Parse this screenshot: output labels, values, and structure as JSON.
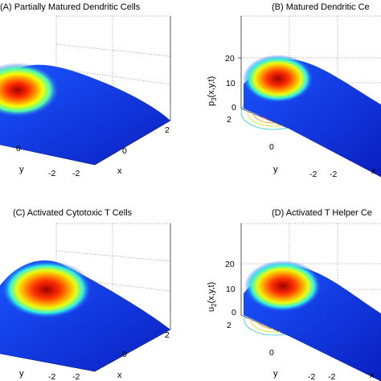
{
  "chart_data": [
    {
      "type": "surface",
      "title": "(A)  Partially Matured Dendritic Cells",
      "xlabel": "x",
      "ylabel": "y",
      "zlabel": "",
      "x_ticks": [
        "-2",
        "0",
        "2"
      ],
      "y_ticks": [
        "-2",
        "0"
      ],
      "z_ticks": [],
      "colormap": "jet",
      "contours": "projected on floor",
      "grid": true
    },
    {
      "type": "surface",
      "title": "(B)  Matured Dendritic Ce",
      "xlabel": "x",
      "ylabel": "y",
      "zlabel": "p3(x,y,t)",
      "zlabel_main": "p",
      "zlabel_sub": "3",
      "zlabel_rest": "(x,y,t)",
      "x_ticks": [
        "-2"
      ],
      "y_ticks": [
        "-2",
        "0",
        "2"
      ],
      "z_ticks": [
        "0",
        "10",
        "20"
      ],
      "zlim": [
        0,
        20
      ],
      "colormap": "jet",
      "contours": "projected on floor",
      "grid": true
    },
    {
      "type": "surface",
      "title": "(C)  Activated Cytotoxic T Cells",
      "xlabel": "x",
      "ylabel": "y",
      "zlabel": "",
      "x_ticks": [
        "-2",
        "0",
        "2"
      ],
      "y_ticks": [
        "-2"
      ],
      "z_ticks": [],
      "colormap": "jet",
      "contours": "projected on floor",
      "grid": true
    },
    {
      "type": "surface",
      "title": "(D)  Activated T Helper Ce",
      "xlabel": "x",
      "ylabel": "y",
      "zlabel": "u2(x,y,t)",
      "zlabel_main": "u",
      "zlabel_sub": "2",
      "zlabel_rest": "(x,y,t)",
      "x_ticks": [
        "-2"
      ],
      "y_ticks": [
        "-2",
        "0",
        "2"
      ],
      "z_ticks": [
        "0",
        "10",
        "20"
      ],
      "zlim": [
        0,
        20
      ],
      "colormap": "jet",
      "contours": "projected on floor",
      "grid": true
    }
  ]
}
